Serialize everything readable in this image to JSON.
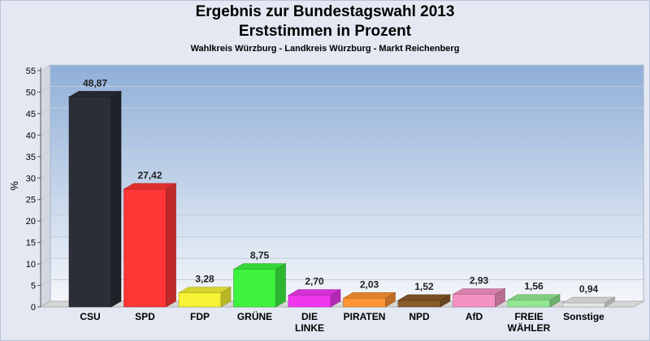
{
  "title": "Ergebnis zur Bundestagswahl 2013",
  "subtitle": "Erststimmen in Prozent",
  "caption": "Wahlkreis Würzburg - Landkreis Würzburg - Markt Reichenberg",
  "chart_data": {
    "type": "bar",
    "ylabel": "%",
    "ylim": [
      0,
      55
    ],
    "yticks": [
      0,
      5,
      10,
      15,
      20,
      25,
      30,
      35,
      40,
      45,
      50,
      55
    ],
    "grid": true,
    "categories": [
      [
        "CSU"
      ],
      [
        "SPD"
      ],
      [
        "FDP"
      ],
      [
        "GRÜNE"
      ],
      [
        "DIE",
        "LINKE"
      ],
      [
        "PIRATEN"
      ],
      [
        "NPD"
      ],
      [
        "AfD"
      ],
      [
        "FREIE",
        "WÄHLER"
      ],
      [
        "Sonstige"
      ]
    ],
    "values": [
      48.87,
      27.42,
      3.28,
      8.75,
      2.7,
      2.03,
      1.52,
      2.93,
      1.56,
      0.94
    ],
    "value_labels": [
      "48,87",
      "27,42",
      "3,28",
      "8,75",
      "2,70",
      "2,03",
      "1,52",
      "2,93",
      "1,56",
      "0,94"
    ],
    "colors": [
      "#2b2d37",
      "#ff3636",
      "#f6f235",
      "#3ef33e",
      "#f037f0",
      "#ff9433",
      "#8b5a2b",
      "#f592c4",
      "#92e892",
      "#e6e6e6"
    ]
  }
}
